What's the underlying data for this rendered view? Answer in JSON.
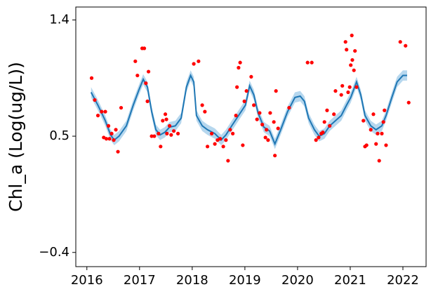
{
  "chart_data": {
    "type": "line",
    "ylabel": "Chl_a (Log(ug/L))",
    "xlim": [
      2015.79,
      2022.44
    ],
    "xticks": [
      2016,
      2017,
      2018,
      2019,
      2020,
      2021,
      2022
    ],
    "ylim": [
      -0.51,
      1.5
    ],
    "yticks": [
      {
        "value": -0.4,
        "label": "−0.4"
      },
      0.5,
      1.4
    ],
    "line": {
      "color": "#1f77b4",
      "band_color": "#9ecae8",
      "x": [
        2016.08,
        2016.21,
        2016.35,
        2016.45,
        2016.52,
        2016.61,
        2016.75,
        2016.88,
        2016.99,
        2017.07,
        2017.15,
        2017.23,
        2017.31,
        2017.39,
        2017.48,
        2017.57,
        2017.68,
        2017.79,
        2017.89,
        2017.97,
        2018.03,
        2018.08,
        2018.19,
        2018.29,
        2018.43,
        2018.55,
        2018.64,
        2018.75,
        2018.88,
        2019.01,
        2019.09,
        2019.17,
        2019.25,
        2019.36,
        2019.47,
        2019.57,
        2019.68,
        2019.81,
        2019.95,
        2020.05,
        2020.13,
        2020.21,
        2020.32,
        2020.41,
        2020.51,
        2020.61,
        2020.72,
        2020.83,
        2020.93,
        2021.01,
        2021.12,
        2021.2,
        2021.28,
        2021.39,
        2021.49,
        2021.6,
        2021.68,
        2021.79,
        2021.89,
        2022,
        2022.08
      ],
      "values": [
        0.84,
        0.74,
        0.62,
        0.51,
        0.47,
        0.5,
        0.58,
        0.74,
        0.86,
        0.94,
        0.88,
        0.69,
        0.55,
        0.51,
        0.53,
        0.57,
        0.58,
        0.64,
        0.88,
        0.97,
        0.92,
        0.66,
        0.58,
        0.55,
        0.52,
        0.47,
        0.51,
        0.58,
        0.66,
        0.74,
        0.89,
        0.82,
        0.68,
        0.57,
        0.54,
        0.44,
        0.55,
        0.69,
        0.8,
        0.81,
        0.77,
        0.64,
        0.55,
        0.5,
        0.52,
        0.58,
        0.62,
        0.66,
        0.74,
        0.8,
        0.92,
        0.82,
        0.66,
        0.58,
        0.55,
        0.58,
        0.66,
        0.8,
        0.92,
        0.97,
        0.97
      ],
      "lower": [
        0.8,
        0.7,
        0.58,
        0.47,
        0.43,
        0.46,
        0.54,
        0.7,
        0.82,
        0.9,
        0.84,
        0.65,
        0.51,
        0.47,
        0.49,
        0.53,
        0.54,
        0.6,
        0.84,
        0.93,
        0.88,
        0.62,
        0.54,
        0.51,
        0.48,
        0.43,
        0.47,
        0.54,
        0.62,
        0.7,
        0.85,
        0.78,
        0.64,
        0.53,
        0.5,
        0.4,
        0.51,
        0.65,
        0.76,
        0.77,
        0.73,
        0.6,
        0.51,
        0.46,
        0.48,
        0.54,
        0.58,
        0.62,
        0.7,
        0.76,
        0.88,
        0.78,
        0.62,
        0.54,
        0.51,
        0.54,
        0.62,
        0.76,
        0.88,
        0.93,
        0.93
      ],
      "upper": [
        0.88,
        0.78,
        0.66,
        0.55,
        0.51,
        0.54,
        0.62,
        0.78,
        0.9,
        0.98,
        0.92,
        0.73,
        0.59,
        0.55,
        0.57,
        0.61,
        0.62,
        0.68,
        0.92,
        1.01,
        0.96,
        0.7,
        0.62,
        0.59,
        0.56,
        0.51,
        0.55,
        0.62,
        0.7,
        0.78,
        0.93,
        0.86,
        0.72,
        0.61,
        0.58,
        0.48,
        0.59,
        0.73,
        0.84,
        0.85,
        0.81,
        0.68,
        0.59,
        0.54,
        0.56,
        0.62,
        0.66,
        0.7,
        0.78,
        0.84,
        0.96,
        0.86,
        0.7,
        0.62,
        0.59,
        0.62,
        0.7,
        0.84,
        0.96,
        1.01,
        1.01
      ]
    },
    "points": {
      "color": "#ff0000",
      "x": [
        2016.09,
        2016.15,
        2016.21,
        2016.28,
        2016.35,
        2016.32,
        2016.37,
        2016.41,
        2016.43,
        2016.47,
        2016.51,
        2016.55,
        2016.59,
        2016.65,
        2016.92,
        2016.96,
        2017.05,
        2017.09,
        2017.12,
        2017.15,
        2017.17,
        2017.23,
        2017.28,
        2017.36,
        2017.4,
        2017.44,
        2017.49,
        2017.51,
        2017.52,
        2017.57,
        2017.6,
        2017.65,
        2017.73,
        2018.03,
        2018.12,
        2018.19,
        2018.24,
        2018.29,
        2018.37,
        2018.43,
        2018.48,
        2018.53,
        2018.59,
        2018.64,
        2018.68,
        2018.72,
        2018.77,
        2018.83,
        2018.85,
        2018.88,
        2018.91,
        2018.96,
        2018.99,
        2019.03,
        2019.12,
        2019.17,
        2019.23,
        2019.28,
        2019.33,
        2019.39,
        2019.41,
        2019.44,
        2019.48,
        2019.55,
        2019.57,
        2019.59,
        2019.63,
        2019.84,
        2020.19,
        2020.27,
        2020.35,
        2020.4,
        2020.45,
        2020.48,
        2020.51,
        2020.56,
        2020.61,
        2020.69,
        2020.72,
        2020.83,
        2020.85,
        2020.91,
        2020.93,
        2020.96,
        2020.99,
        2021.01,
        2021.03,
        2021.04,
        2021.07,
        2021.09,
        2021.12,
        2021.25,
        2021.28,
        2021.31,
        2021.39,
        2021.44,
        2021.49,
        2021.52,
        2021.55,
        2021.6,
        2021.63,
        2021.65,
        2021.68,
        2021.95,
        2022.05,
        2022.11
      ],
      "values": [
        0.95,
        0.78,
        0.66,
        0.69,
        0.69,
        0.49,
        0.48,
        0.58,
        0.48,
        0.52,
        0.47,
        0.55,
        0.38,
        0.72,
        1.08,
        0.97,
        1.18,
        1.18,
        0.91,
        0.77,
        1.0,
        0.5,
        0.5,
        0.52,
        0.42,
        0.62,
        0.67,
        0.63,
        0.52,
        0.58,
        0.51,
        0.54,
        0.52,
        1.06,
        1.08,
        0.74,
        0.69,
        0.42,
        0.52,
        0.44,
        0.47,
        0.48,
        0.42,
        0.47,
        0.31,
        0.55,
        0.52,
        0.66,
        0.88,
        1.03,
        1.07,
        0.43,
        0.77,
        0.85,
        0.96,
        0.74,
        0.63,
        0.68,
        0.59,
        0.49,
        0.55,
        0.47,
        0.68,
        0.61,
        0.35,
        0.85,
        0.56,
        0.72,
        1.07,
        1.07,
        0.47,
        0.49,
        0.52,
        0.53,
        0.61,
        0.7,
        0.58,
        0.67,
        0.85,
        0.82,
        0.89,
        1.23,
        1.17,
        0.84,
        0.88,
        1.05,
        1.28,
        1.09,
        1.01,
        1.16,
        0.88,
        0.62,
        0.42,
        0.43,
        0.55,
        0.67,
        0.44,
        0.52,
        0.31,
        0.52,
        0.61,
        0.7,
        0.43,
        1.23,
        1.2,
        0.76
      ]
    }
  }
}
